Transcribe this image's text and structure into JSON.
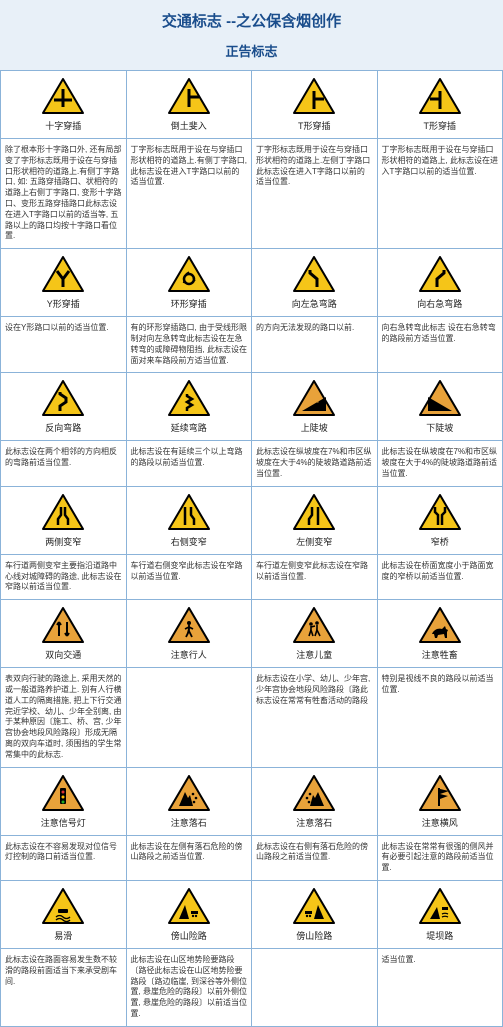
{
  "header": {
    "title": "交通标志 --之公保含烟创作",
    "subtitle": "正告标志"
  },
  "colors": {
    "triYellow": "#f5c518",
    "triOrange": "#e8a23a",
    "border": "#000",
    "headerBg": "#e8f0f8",
    "headerText": "#1a4d8c"
  },
  "rows": [
    {
      "cells": [
        {
          "label": "十字穿插",
          "icon": "cross",
          "col": "y",
          "desc": "除了根本形十字路口外, 还有局部变了字形标志既用于设在与穿插口形状相符的道路上.有侧丁字路口, 如: 五路穿插路口、状相符的道路上右侧丁字路口, 变形十字路口、变形五路穿插路口此标志设在进入T字路口以前的适当等, 五路以上的路口均按十字路口看位置."
        },
        {
          "label": "倒土斐入",
          "icon": "tup",
          "col": "y",
          "desc": "丁字形标志既用于设在与穿插口形状相符的道路上.有侧丁字路口, 此标志设在进入T字路口以前的适当位置."
        },
        {
          "label": "T形穿插",
          "icon": "tright",
          "col": "y",
          "desc": "丁字形标志既用于设在与穿插口形状相符的道路上.左侧丁字路口此标志设在进入T字路口以前的适当位置."
        },
        {
          "label": "T形穿插",
          "icon": "tleft",
          "col": "y",
          "desc": "丁字形标志既用于设在与穿插口形状相符的道路上, 此标志设在进入T字路口以前的适当位置."
        }
      ]
    },
    {
      "cells": [
        {
          "label": "Y形穿插",
          "icon": "yfork",
          "col": "y",
          "desc": "设在Y形路口以前的适当位置."
        },
        {
          "label": "环形穿插",
          "icon": "ring",
          "col": "y",
          "desc": "有的环形穿插路口, 由于受线形限制对向左急转弯此标志设在左急转弯的或障碍物阻挡, 此标志设在面对来车路段前方适当位置."
        },
        {
          "label": "向左急弯路",
          "icon": "curveL",
          "col": "y",
          "desc": "的方向无法发现的路口以前."
        },
        {
          "label": "向右急弯路",
          "icon": "curveR",
          "col": "y",
          "desc": "向右急转弯此标志 设在右急转弯的路段前方适当位置."
        }
      ]
    },
    {
      "cells": [
        {
          "label": "反向弯路",
          "icon": "scurve",
          "col": "y",
          "desc": "此标志设在两个相邻的方向相反的弯路前适当位置."
        },
        {
          "label": "延续弯路",
          "icon": "zigzag",
          "col": "y",
          "desc": "此标志设在有延续三个以上弯路的路段以前适当位置."
        },
        {
          "label": "上陡坡",
          "icon": "slopeUp",
          "col": "o",
          "desc": "此标志设在纵坡度在7%和市区纵坡度在大于4%的陡坡路道路前适当位置."
        },
        {
          "label": "下陡坡",
          "icon": "slopeDown",
          "col": "o",
          "desc": "此标志设在纵坡度在7%和市区纵坡度在大于4%的陡坡路道路前适当位置."
        }
      ]
    },
    {
      "cells": [
        {
          "label": "两侧变窄",
          "icon": "narrowBoth",
          "col": "y",
          "desc": "车行道两侧变窄主要指沿道路中心线对城障碍的路途, 此标志设在窄路以前适当位置."
        },
        {
          "label": "右侧变窄",
          "icon": "narrowR",
          "col": "y",
          "desc": "车行道右侧变窄此标志设在窄路以前适当位置."
        },
        {
          "label": "左侧变窄",
          "icon": "narrowL",
          "col": "y",
          "desc": "车行道左侧变窄此标志设在窄路以前适当位置."
        },
        {
          "label": "窄桥",
          "icon": "bridge",
          "col": "y",
          "desc": "此标志设在桥面宽度小于路面宽度的窄桥以前适当位置."
        }
      ]
    },
    {
      "cells": [
        {
          "label": "双向交通",
          "icon": "twoWay",
          "col": "o",
          "desc": "表双向行驶的路途上, 采用天然的或一般道路养护道上. 别有人行横道人工的隔离措施, 把上下行交通完近学校、幼儿、少年全别离, 由于某种原因〔施工、桥、宫, 少年宫协会地段风险路段〕形成无隔离的双向车道时, 须围挡的学生常常集中的此标志."
        },
        {
          "label": "注意行人",
          "icon": "ped",
          "col": "o",
          "desc": ""
        },
        {
          "label": "注意儿童",
          "icon": "children",
          "col": "o",
          "desc": "此标志设在小学、幼儿、少年宫, 少年宫协会地段风险路段〔路此标志设在常常有牲畜活动的路段"
        },
        {
          "label": "注意牲畜",
          "icon": "cattle",
          "col": "o",
          "desc": "特别是视线不良的路段以前适当位置."
        }
      ]
    },
    {
      "cells": [
        {
          "label": "注意信号灯",
          "icon": "signal",
          "col": "o",
          "desc": "此标志设在不容易发现对位信号灯控制的路口前适当位置."
        },
        {
          "label": "注意落石",
          "icon": "rockL",
          "col": "o",
          "desc": "此标志设在左侧有落石危险的傍山路段之前适当位置."
        },
        {
          "label": "注意落石",
          "icon": "rockR",
          "col": "o",
          "desc": "此标志设在右侧有落石危险的傍山路段之前适当位置."
        },
        {
          "label": "注意横风",
          "icon": "wind",
          "col": "o",
          "desc": "此标志设在常常有很强的侧风并有必要引起注意的路段前适当位置."
        }
      ]
    },
    {
      "cells": [
        {
          "label": "易滑",
          "icon": "slip",
          "col": "y",
          "desc": "此标志设在路面容易发生数不较滑的路段前面适当下来承受剧车间."
        },
        {
          "label": "傍山险路",
          "icon": "cliffL",
          "col": "y",
          "desc": "此标志设在山区地势险要路段〔路径此标志设在山区地势险要路段〔路边临崖, 到深谷等外侧位置, 悬崖危险的路段〕以前外侧位置, 悬崖危险的路段〕以前适当位置."
        },
        {
          "label": "傍山险路",
          "icon": "cliffR",
          "col": "y",
          "desc": ""
        },
        {
          "label": "堤坝路",
          "icon": "dam",
          "col": "y",
          "desc": "适当位置."
        }
      ]
    }
  ]
}
